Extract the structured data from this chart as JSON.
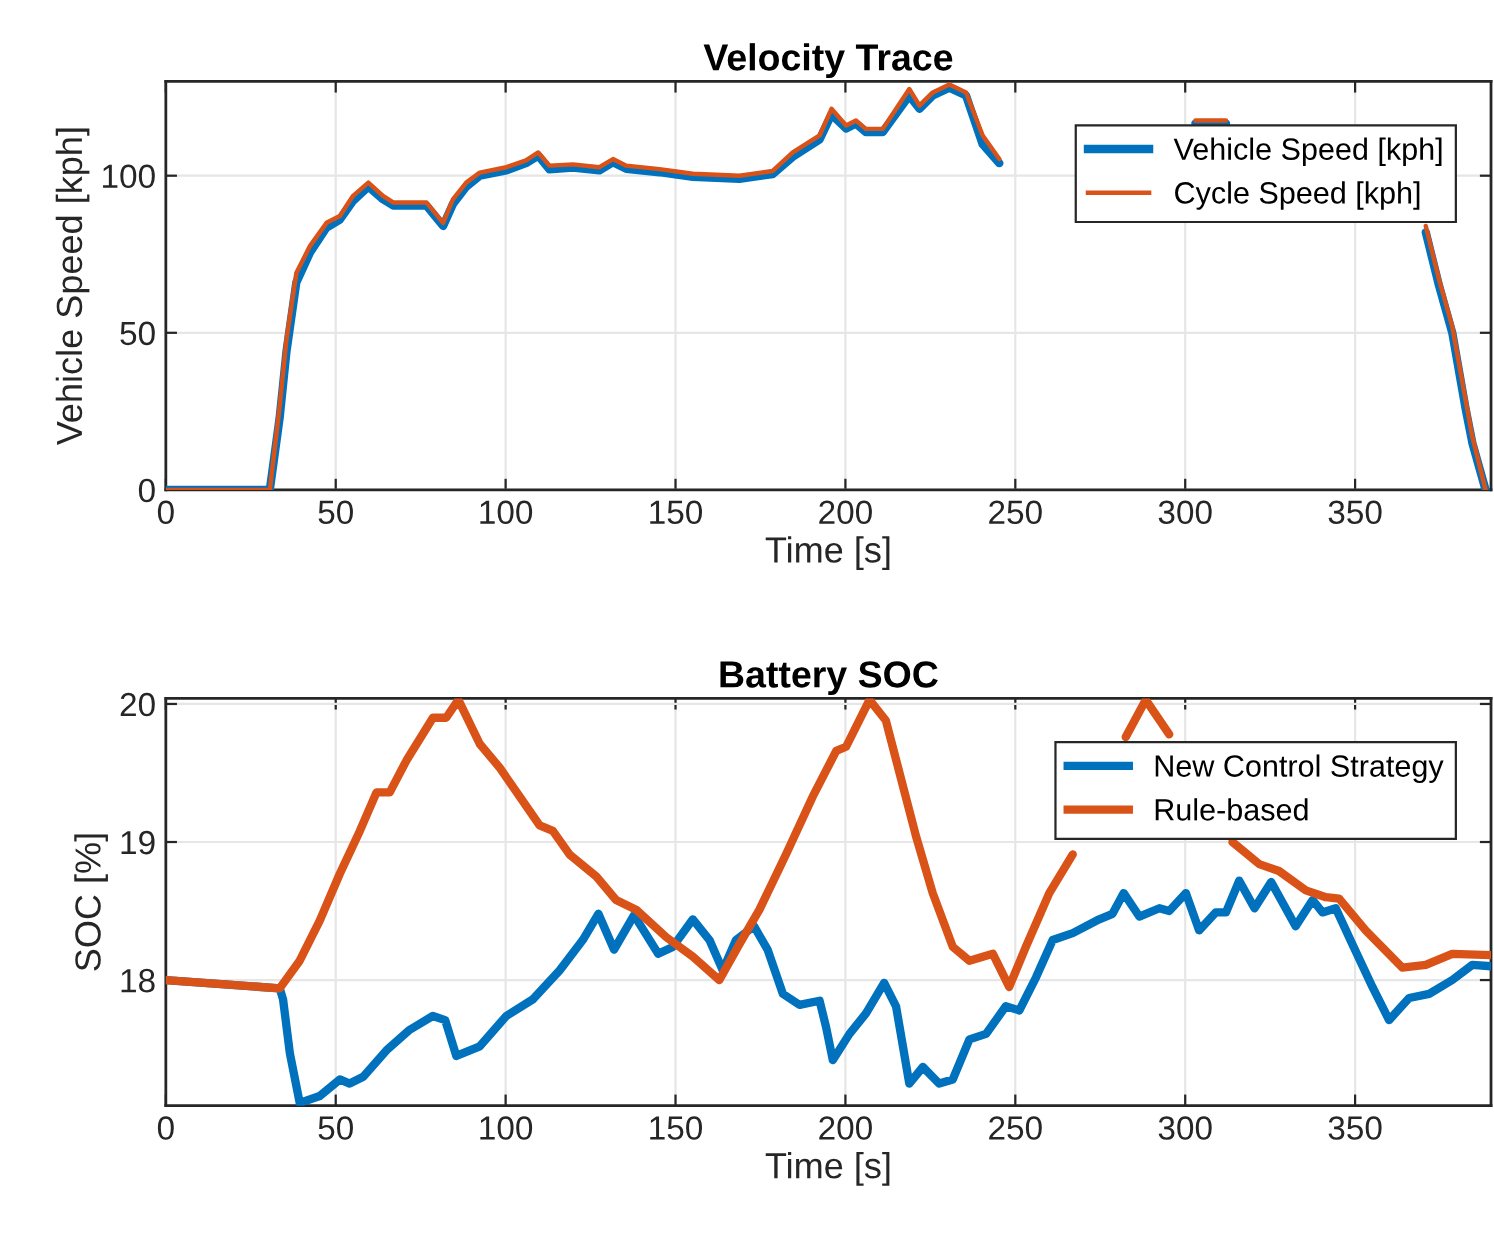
{
  "chart_data": [
    {
      "type": "line",
      "title": "Velocity Trace",
      "xlabel": "Time [s]",
      "ylabel": "Vehicle Speed [kph]",
      "xlim": [
        0,
        390
      ],
      "xticks": [
        0,
        50,
        100,
        150,
        200,
        250,
        300,
        350
      ],
      "ylim": [
        0,
        130
      ],
      "yticks": [
        0,
        50,
        100
      ],
      "grid": true,
      "legend": "top right",
      "x": [
        0,
        30.6,
        33.5,
        35.5,
        38.4,
        42.4,
        47.3,
        51.2,
        55.1,
        59.6,
        63.9,
        66.9,
        76.7,
        81.6,
        84.5,
        88.4,
        92.4,
        100.2,
        106,
        109.6,
        112.9,
        119.8,
        127.6,
        131.6,
        135.5,
        145.3,
        155.1,
        168.8,
        178.6,
        184.5,
        192.4,
        195.9,
        200.2,
        203.1,
        206,
        211,
        218.8,
        221.8,
        225.7,
        230.6,
        235.5,
        240.4,
        245.3,
        270,
        303,
        312,
        340,
        368,
        370.8,
        374.7,
        378.6,
        382.5,
        384.5,
        388.4
      ],
      "series": [
        {
          "name": "Vehicle Speed [kph]",
          "color": "#0072bd",
          "values": [
            0,
            0,
            23,
            44,
            66,
            75.5,
            83.5,
            86,
            92,
            96.5,
            92.5,
            90.5,
            90.5,
            84,
            91,
            96.5,
            100,
            101.7,
            104,
            106.4,
            102,
            102.6,
            101.7,
            104.3,
            102.2,
            101.1,
            99.6,
            99,
            100.5,
            106,
            111.5,
            119.5,
            115,
            116.6,
            113.9,
            113.9,
            125.5,
            121.3,
            125.5,
            128,
            125.5,
            110,
            104,
            null,
            116.6,
            116.6,
            null,
            null,
            82,
            65,
            50,
            26,
            15,
            0
          ]
        },
        {
          "name": "Cycle Speed [kph]",
          "color": "#d95319",
          "values": [
            0,
            0,
            26.6,
            47.9,
            69,
            77.6,
            85,
            87.2,
            93.6,
            97.8,
            93.6,
            91.5,
            91.5,
            85,
            92.5,
            97.8,
            101,
            102.7,
            104.9,
            107.4,
            103.2,
            103.6,
            102.7,
            105.3,
            103.2,
            102.1,
            100.6,
            100,
            101.5,
            107.4,
            112.8,
            121.3,
            116,
            117.6,
            114.9,
            114.9,
            127.6,
            122.3,
            126.5,
            129,
            126.5,
            112.8,
            105.3,
            null,
            117.6,
            117.6,
            null,
            null,
            84,
            67,
            52,
            28.7,
            17,
            0
          ]
        }
      ]
    },
    {
      "type": "line",
      "title": "Battery SOC",
      "xlabel": "Time [s]",
      "ylabel": "SOC [%]",
      "xlim": [
        0,
        390
      ],
      "xticks": [
        0,
        50,
        100,
        150,
        200,
        250,
        300,
        350
      ],
      "ylim": [
        17.09,
        20.04
      ],
      "yticks": [
        18,
        19,
        20
      ],
      "grid": true,
      "legend": "top right",
      "series": [
        {
          "name": "New Control Strategy",
          "color": "#0072bd",
          "x": [
            0,
            33.5,
            34.5,
            36.5,
            39.4,
            45.3,
            51.2,
            54.1,
            58.1,
            64.9,
            71.8,
            78.6,
            82.2,
            85.5,
            92.4,
            100.2,
            108,
            115.9,
            122.7,
            127.3,
            131.9,
            137.8,
            144.9,
            149.2,
            155.1,
            160,
            163.9,
            167.8,
            173.1,
            177.1,
            181.6,
            186.5,
            192.4,
            194.3,
            196.3,
            201.2,
            206.1,
            211.4,
            214.9,
            218.8,
            222.8,
            227.6,
            231.6,
            236.5,
            241.4,
            247.2,
            251.2,
            256.1,
            261,
            266.9,
            274.7,
            278.6,
            281.9,
            286.5,
            292.4,
            295.3,
            300.2,
            304.1,
            309,
            312,
            315.9,
            320.4,
            325.3,
            332.5,
            337.5,
            340.4,
            344.3,
            349.2,
            355.1,
            360,
            365.9,
            371.8,
            378.6,
            384.5,
            390
          ],
          "values": [
            18.0,
            17.94,
            17.86,
            17.47,
            17.11,
            17.16,
            17.28,
            17.25,
            17.3,
            17.49,
            17.64,
            17.74,
            17.71,
            17.45,
            17.52,
            17.74,
            17.86,
            18.07,
            18.29,
            18.48,
            18.22,
            18.47,
            18.19,
            18.24,
            18.44,
            18.29,
            18.07,
            18.29,
            18.39,
            18.22,
            17.9,
            17.82,
            17.85,
            17.66,
            17.42,
            17.61,
            17.76,
            17.98,
            17.81,
            17.25,
            17.37,
            17.25,
            17.28,
            17.57,
            17.61,
            17.81,
            17.78,
            18.02,
            18.29,
            18.34,
            18.44,
            18.48,
            18.63,
            18.46,
            18.52,
            18.5,
            18.63,
            18.36,
            18.49,
            18.49,
            18.72,
            18.52,
            18.71,
            18.39,
            18.58,
            18.49,
            18.52,
            18.26,
            17.95,
            17.71,
            17.87,
            17.9,
            18.0,
            18.11,
            18.1
          ]
        },
        {
          "name": "Rule-based",
          "color": "#d95319",
          "x": [
            0,
            33.5,
            39.4,
            45.3,
            51.2,
            57.1,
            62,
            65.9,
            70.8,
            78.6,
            82.5,
            86.1,
            92.4,
            98.2,
            104.1,
            110,
            113.9,
            118.8,
            126.7,
            132.5,
            138.4,
            147.3,
            155.1,
            162.9,
            168.8,
            174.7,
            182.5,
            190.4,
            197.3,
            200.2,
            207.1,
            211.9,
            220.8,
            225.7,
            231.6,
            236.5,
            243.4,
            248.2,
            253.1,
            260,
            266.9,
            275,
            282.5,
            288.4,
            295.3,
            305,
            313.9,
            321.8,
            327.6,
            335.5,
            341.4,
            345.3,
            353.1,
            363.9,
            370.8,
            378.6,
            390
          ],
          "values": [
            18.0,
            17.94,
            18.14,
            18.43,
            18.77,
            19.08,
            19.36,
            19.36,
            19.59,
            19.9,
            19.9,
            20.03,
            19.71,
            19.54,
            19.33,
            19.12,
            19.08,
            18.91,
            18.75,
            18.58,
            18.51,
            18.31,
            18.17,
            18.0,
            18.26,
            18.51,
            18.91,
            19.33,
            19.66,
            19.69,
            20.03,
            19.88,
            19.04,
            18.63,
            18.24,
            18.14,
            18.19,
            17.95,
            18.24,
            18.63,
            18.91,
            null,
            19.76,
            20.03,
            19.78,
            null,
            19.0,
            18.84,
            18.79,
            18.65,
            18.6,
            18.59,
            18.36,
            18.09,
            18.11,
            18.19,
            18.18
          ]
        }
      ]
    }
  ]
}
